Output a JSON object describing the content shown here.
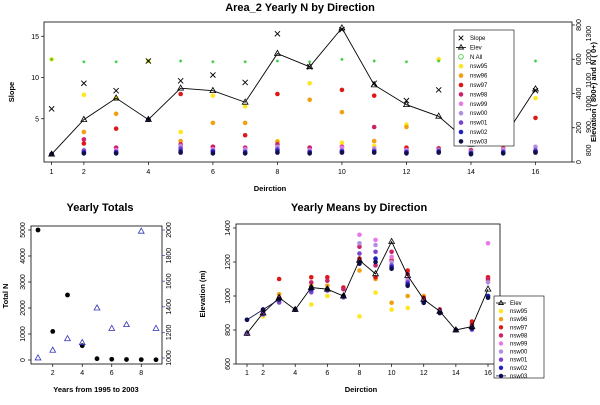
{
  "chart_data": [
    {
      "type": "scatter",
      "title": "Area_2 Yearly N by Direction",
      "xlabel": "Deirction",
      "ylabel": "Slope",
      "y2label": "Elevation ( 800+) and N ( 0+)",
      "xlim": [
        1,
        16
      ],
      "ylim": [
        0,
        16
      ],
      "y2lim_n": [
        0,
        800
      ],
      "y2lim_elev": [
        750,
        1350
      ],
      "x_ticks": [
        1,
        2,
        4,
        6,
        8,
        10,
        12,
        14,
        16
      ],
      "y_ticks": [
        5,
        10,
        15
      ],
      "y2_ticks_n": [
        0,
        200,
        400,
        600,
        800
      ],
      "y2_ticks_elev": [
        800,
        900,
        1000,
        1100,
        1200,
        1300
      ],
      "legend_position": "top-right",
      "slope": {
        "name": "Slope",
        "color": "#000000",
        "x": [
          1,
          2,
          3,
          4,
          5,
          6,
          7,
          8,
          9,
          10,
          11,
          12,
          13,
          14,
          15,
          16
        ],
        "y": [
          6.2,
          9.3,
          8.4,
          12,
          9.6,
          10.3,
          9.4,
          15.3,
          11.3,
          15.8,
          9.3,
          7.2,
          8.5,
          7.2,
          6.3,
          8.4
        ]
      },
      "elev": {
        "name": "Elev",
        "color": "#000000",
        "x": [
          1,
          2,
          3,
          4,
          5,
          6,
          7,
          8,
          9,
          10,
          11,
          12,
          13,
          14,
          15,
          16
        ],
        "y": [
          0.7,
          4.9,
          7.5,
          4.9,
          8.7,
          8.4,
          7.0,
          12.9,
          11.3,
          16.0,
          9.1,
          6.7,
          5.3,
          1.9,
          2.6,
          8.6
        ]
      },
      "n_all": {
        "name": "N All",
        "color": "#33cc33",
        "x": [
          1,
          2,
          3,
          4,
          5,
          6,
          7,
          8,
          9,
          10,
          11,
          12,
          13,
          14,
          15,
          16
        ],
        "y": [
          12.2,
          11.9,
          11.9,
          12.0,
          12.0,
          11.9,
          11.9,
          12.0,
          11.9,
          12.2,
          12.0,
          11.9,
          12.0,
          11.9,
          11.9,
          12.0
        ]
      },
      "years": [
        {
          "name": "nsw95",
          "color": "#ffe620",
          "x": [
            1,
            2,
            3,
            4,
            5,
            6,
            7,
            8,
            9,
            10,
            11,
            12,
            13,
            14,
            15,
            16
          ],
          "y": [
            12.2,
            7.9,
            7.5,
            12.0,
            3.4,
            7.8,
            6.5,
            2.3,
            9.3,
            2.1,
            1.7,
            4.3,
            12.2,
            9.1,
            1.6,
            7.5
          ]
        },
        {
          "name": "nsw96",
          "color": "#f0a010",
          "x": [
            1,
            2,
            3,
            4,
            5,
            6,
            7,
            8,
            9,
            10,
            11,
            12,
            13,
            14,
            15,
            16
          ],
          "y": [
            0.7,
            3.4,
            5.6,
            4.9,
            2.3,
            4.5,
            4.5,
            2.2,
            7.3,
            5.8,
            2.3,
            4.0,
            1.4,
            1.1,
            2.6,
            1.0
          ]
        },
        {
          "name": "nsw97",
          "color": "#dd1818",
          "x": [
            1,
            2,
            3,
            4,
            5,
            6,
            7,
            8,
            9,
            10,
            11,
            12,
            13,
            14,
            15,
            16
          ],
          "y": [
            0.7,
            2.0,
            3.8,
            4.9,
            8.0,
            1.6,
            3.0,
            8.0,
            1.5,
            8.5,
            7.8,
            1.5,
            1.4,
            3.0,
            3.3,
            5.1
          ]
        },
        {
          "name": "nsw98",
          "color": "#cc2266",
          "x": [
            1,
            2,
            3,
            4,
            5,
            6,
            7,
            8,
            9,
            10,
            11,
            12,
            13,
            14,
            15,
            16
          ],
          "y": [
            0.7,
            2.5,
            1.5,
            4.9,
            1.9,
            1.6,
            1.5,
            1.9,
            1.5,
            1.6,
            4.0,
            1.2,
            1.4,
            1.2,
            1.4,
            1.1
          ]
        },
        {
          "name": "nsw99",
          "color": "#e878e8",
          "x": [
            1,
            2,
            3,
            4,
            5,
            6,
            7,
            8,
            9,
            10,
            11,
            12,
            13,
            14,
            15,
            16
          ],
          "y": [
            0.7,
            1.0,
            1.2,
            4.9,
            1.5,
            1.3,
            1.3,
            1.3,
            1.2,
            1.5,
            1.4,
            1.2,
            1.2,
            1.0,
            1.3,
            1.1
          ]
        },
        {
          "name": "nsw00",
          "color": "#b090e0",
          "x": [
            1,
            2,
            3,
            4,
            5,
            6,
            7,
            8,
            9,
            10,
            11,
            12,
            13,
            14,
            15,
            16
          ],
          "y": [
            0.7,
            1.2,
            1.0,
            4.9,
            1.7,
            1.2,
            1.2,
            1.6,
            1.1,
            1.2,
            1.3,
            1.1,
            1.2,
            1.0,
            1.2,
            1.6
          ]
        },
        {
          "name": "nsw01",
          "color": "#7a44cc",
          "x": [
            1,
            2,
            3,
            4,
            5,
            6,
            7,
            8,
            9,
            10,
            11,
            12,
            13,
            14,
            15,
            16
          ],
          "y": [
            0.7,
            1.1,
            1.0,
            4.9,
            1.4,
            1.1,
            1.0,
            1.3,
            1.0,
            1.1,
            1.1,
            1.0,
            1.1,
            0.9,
            1.0,
            1.2
          ]
        },
        {
          "name": "nsw02",
          "color": "#2222bb",
          "x": [
            1,
            2,
            3,
            4,
            5,
            6,
            7,
            8,
            9,
            10,
            11,
            12,
            13,
            14,
            15,
            16
          ],
          "y": [
            0.7,
            0.9,
            0.9,
            4.9,
            1.1,
            1.0,
            0.9,
            1.1,
            0.9,
            1.0,
            1.0,
            0.9,
            1.0,
            0.8,
            0.9,
            1.0
          ]
        },
        {
          "name": "nsw03",
          "color": "#10104a",
          "x": [
            1,
            2,
            3,
            4,
            5,
            6,
            7,
            8,
            9,
            10,
            11,
            12,
            13,
            14,
            15,
            16
          ],
          "y": [
            0.7,
            0.8,
            0.8,
            4.9,
            0.9,
            0.8,
            0.8,
            0.9,
            0.8,
            0.9,
            0.9,
            0.8,
            0.9,
            0.7,
            0.8,
            0.9
          ]
        }
      ]
    },
    {
      "type": "scatter",
      "title": "Yearly Totals",
      "xlabel": "Years from 1995 to 2003",
      "ylabel": "Total N",
      "xlim": [
        1,
        9
      ],
      "ylim": [
        0,
        5000
      ],
      "y2lim": [
        1000,
        2000
      ],
      "x_ticks": [
        2,
        4,
        6,
        8
      ],
      "y_ticks": [
        0,
        1000,
        2000,
        3000,
        4000,
        5000
      ],
      "y2_ticks": [
        1000,
        1200,
        1400,
        1600,
        1800,
        2000
      ],
      "series": [
        {
          "name": "Total N",
          "color": "#000000",
          "marker": "filled-circle",
          "x": [
            1,
            2,
            3,
            4,
            5,
            6,
            7,
            8,
            9
          ],
          "y": [
            5000,
            1100,
            2500,
            550,
            50,
            30,
            20,
            15,
            10
          ]
        },
        {
          "name": "Elevation",
          "color": "#3333bb",
          "marker": "open-triangle",
          "x": [
            1,
            2,
            3,
            4,
            5,
            6,
            7,
            8,
            9
          ],
          "y": [
            1000,
            1060,
            1150,
            1120,
            1390,
            1230,
            1260,
            1990,
            1230
          ]
        }
      ]
    },
    {
      "type": "line",
      "title": "Yearly Means by Direction",
      "xlabel": "Deirction",
      "ylabel": "Elevation (m)",
      "xlim": [
        1,
        16
      ],
      "ylim": [
        600,
        1400
      ],
      "x_ticks": [
        1,
        2,
        4,
        6,
        8,
        10,
        12,
        14,
        16
      ],
      "y_ticks": [
        600,
        800,
        1000,
        1200,
        1400
      ],
      "legend_position": "bottom-right",
      "elev": {
        "name": "Elev",
        "color": "#000000",
        "x": [
          1,
          2,
          3,
          4,
          5,
          6,
          7,
          8,
          9,
          10,
          11,
          12,
          13,
          14,
          15,
          16
        ],
        "y": [
          780,
          900,
          990,
          920,
          1050,
          1040,
          1000,
          1210,
          1130,
          1320,
          1120,
          980,
          910,
          800,
          820,
          1040
        ]
      },
      "means_line": {
        "name": "nsw03",
        "color": "#101050",
        "x": [
          1,
          2,
          3
        ],
        "y": [
          860,
          920,
          980
        ]
      },
      "years": [
        {
          "name": "nsw95",
          "color": "#ffe620",
          "x": [
            1,
            2,
            3,
            4,
            5,
            6,
            7,
            8,
            9,
            10,
            11,
            12,
            13,
            14,
            15,
            16
          ],
          "y": [
            780,
            880,
            960,
            920,
            950,
            1000,
            1000,
            880,
            1020,
            920,
            930,
            980,
            910,
            800,
            820,
            1000
          ]
        },
        {
          "name": "nsw96",
          "color": "#f0a010",
          "x": [
            1,
            2,
            3,
            4,
            5,
            6,
            7,
            8,
            9,
            10,
            11,
            12,
            13,
            14,
            15,
            16
          ],
          "y": [
            780,
            900,
            1010,
            920,
            1060,
            1060,
            1000,
            1150,
            1100,
            960,
            1000,
            1000,
            920,
            800,
            840,
            1090
          ]
        },
        {
          "name": "nsw97",
          "color": "#dd1818",
          "x": [
            1,
            2,
            3,
            4,
            5,
            6,
            7,
            8,
            9,
            10,
            11,
            12,
            13,
            14,
            15,
            16
          ],
          "y": [
            780,
            910,
            1100,
            920,
            1110,
            1110,
            1050,
            1220,
            1110,
            1210,
            1150,
            990,
            920,
            800,
            850,
            1110
          ]
        },
        {
          "name": "nsw98",
          "color": "#cc2266",
          "x": [
            1,
            2,
            3,
            4,
            5,
            6,
            7,
            8,
            9,
            10,
            11,
            12,
            13,
            14,
            15,
            16
          ],
          "y": [
            780,
            920,
            990,
            920,
            1080,
            1090,
            1040,
            1290,
            1180,
            1260,
            1130,
            980,
            920,
            800,
            830,
            1100
          ]
        },
        {
          "name": "nsw99",
          "color": "#e878e8",
          "x": [
            1,
            2,
            3,
            4,
            5,
            6,
            7,
            8,
            9,
            10,
            11,
            12,
            13,
            14,
            15,
            16
          ],
          "y": [
            780,
            900,
            970,
            920,
            1030,
            1040,
            1000,
            1360,
            1330,
            1230,
            1100,
            970,
            910,
            800,
            810,
            1310
          ]
        },
        {
          "name": "nsw00",
          "color": "#b090e0",
          "x": [
            1,
            2,
            3,
            4,
            5,
            6,
            7,
            8,
            9,
            10,
            11,
            12,
            13,
            14,
            15,
            16
          ],
          "y": [
            780,
            890,
            960,
            920,
            1020,
            1030,
            990,
            1310,
            1300,
            1200,
            1090,
            960,
            900,
            800,
            800,
            1080
          ]
        },
        {
          "name": "nsw01",
          "color": "#7a44cc",
          "x": [
            1,
            2,
            3,
            4,
            5,
            6,
            7,
            8,
            9,
            10,
            11,
            12,
            13,
            14,
            15,
            16
          ],
          "y": [
            780,
            895,
            965,
            920,
            1025,
            1035,
            995,
            1250,
            1260,
            1180,
            1080,
            965,
            905,
            800,
            805,
            1000
          ]
        },
        {
          "name": "nsw02",
          "color": "#2222bb",
          "x": [
            1,
            2,
            3,
            4,
            5,
            6,
            7,
            8,
            9,
            10,
            11,
            12,
            13,
            14,
            15,
            16
          ],
          "y": [
            860,
            920,
            980,
            920,
            1040,
            1040,
            1000,
            1200,
            1220,
            1170,
            1070,
            960,
            900,
            800,
            810,
            1000
          ]
        },
        {
          "name": "nsw03",
          "color": "#101050",
          "x": [
            1,
            2,
            3,
            4,
            5,
            6,
            7,
            8,
            9,
            10,
            11,
            12,
            13,
            14,
            15,
            16
          ],
          "y": [
            860,
            920,
            980,
            920,
            1050,
            1040,
            1000,
            1190,
            1200,
            1160,
            1060,
            960,
            900,
            800,
            810,
            990
          ]
        }
      ]
    }
  ]
}
